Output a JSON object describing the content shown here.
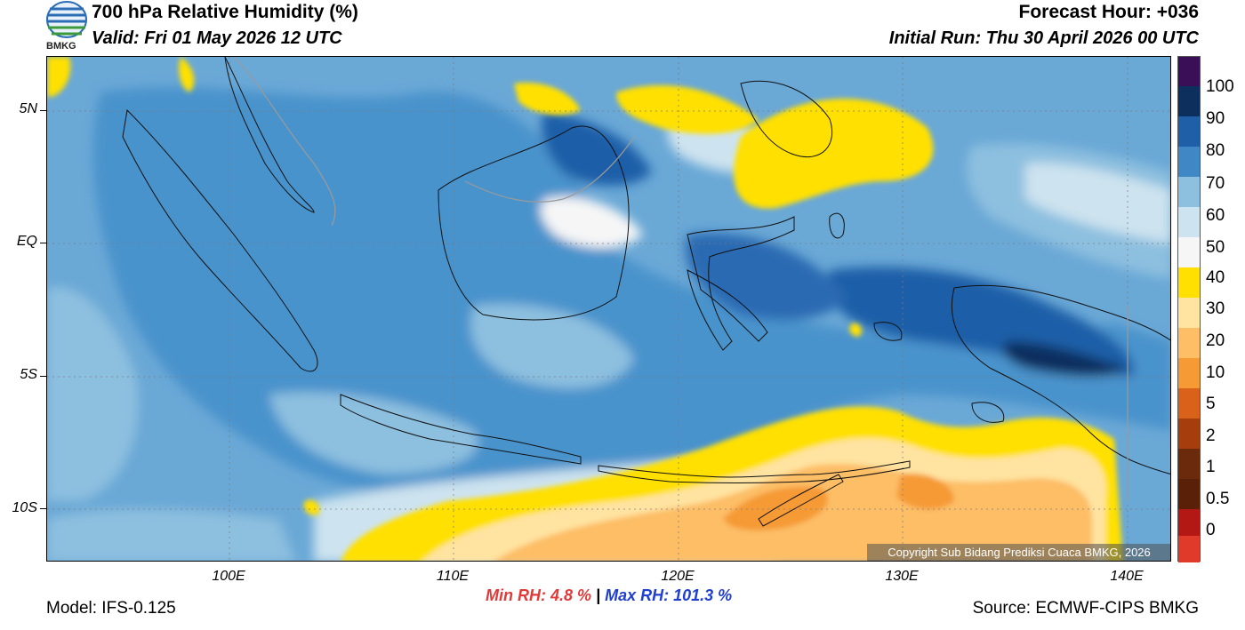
{
  "header": {
    "title": "700 hPa Relative Humidity (%)",
    "valid": "Valid: Fri 01 May 2026 12 UTC",
    "forecast_hour": "Forecast Hour: +036",
    "initial_run": "Initial Run: Thu 30 April 2026 00 UTC",
    "logo_text": "BMKG"
  },
  "map": {
    "lat_labels": [
      "5N",
      "EQ",
      "5S",
      "10S"
    ],
    "lon_labels": [
      "100E",
      "110E",
      "120E",
      "130E",
      "140E"
    ],
    "copyright": "Copyright Sub Bidang Prediksi Cuaca BMKG, 2026"
  },
  "colorbar": {
    "labels": [
      "100",
      "90",
      "80",
      "70",
      "60",
      "50",
      "40",
      "30",
      "20",
      "10",
      "5",
      "2",
      "1",
      "0.5",
      "0"
    ],
    "colors": [
      "#3a0f57",
      "#0c2f5e",
      "#1f5fa8",
      "#3f88c5",
      "#8dbfdf",
      "#cde3ef",
      "#f6f6f6",
      "#ffe000",
      "#ffc83a",
      "#ffe3a0",
      "#fdbe66",
      "#f59a35",
      "#d9611a",
      "#a63d0c",
      "#6b2a0b",
      "#b41815",
      "#e03a2b"
    ]
  },
  "footer": {
    "model": "Model: IFS-0.125",
    "source": "Source: ECMWF-CIPS BMKG",
    "min_label": "Min RH:",
    "min_value": "4.8 %",
    "separator": "|",
    "max_label": "Max RH: 101.3 %"
  }
}
